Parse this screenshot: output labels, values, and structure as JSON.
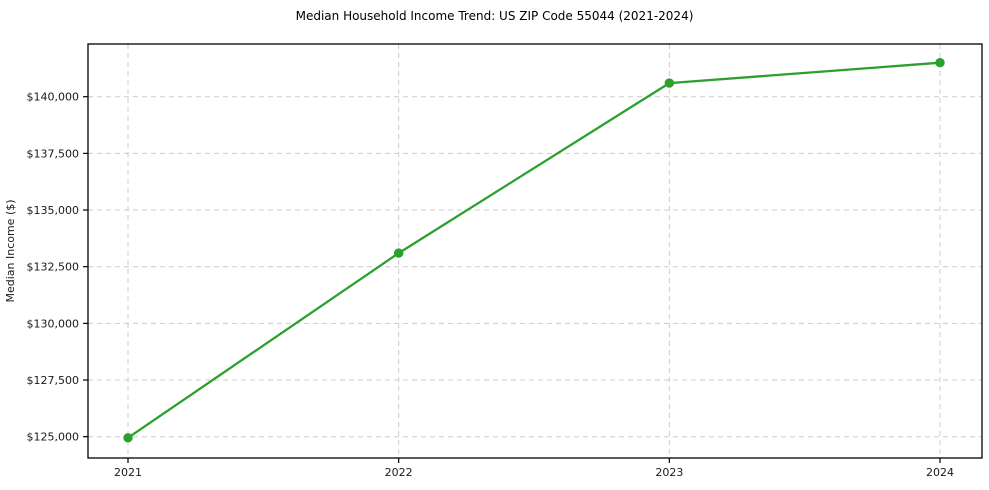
{
  "chart_data": {
    "type": "line",
    "title": "Median Household Income Trend: US ZIP Code 55044 (2021-2024)",
    "xlabel": "",
    "ylabel": "Median Income ($)",
    "x_tick_labels": [
      "2021",
      "2022",
      "2023",
      "2024"
    ],
    "x": [
      2021,
      2022,
      2023,
      2024
    ],
    "series": [
      {
        "name": "Median Household Income",
        "values": [
          124950,
          133100,
          140600,
          141500
        ]
      }
    ],
    "y_ticks": [
      {
        "value": 125000,
        "label": "$125,000"
      },
      {
        "value": 127500,
        "label": "$127,500"
      },
      {
        "value": 130000,
        "label": "$130,000"
      },
      {
        "value": 132500,
        "label": "$132,500"
      },
      {
        "value": 135000,
        "label": "$135,000"
      },
      {
        "value": 137500,
        "label": "$137,500"
      },
      {
        "value": 140000,
        "label": "$140,000"
      }
    ],
    "ylim": [
      124060,
      142325
    ],
    "grid": true,
    "grid_style": "dashed",
    "legend_position": "none",
    "line_color": "#2ca02c",
    "marker": "circle",
    "marker_color": "#2ca02c",
    "grid_color": "#cccccc",
    "spine_color": "#000000",
    "background": "#ffffff"
  }
}
